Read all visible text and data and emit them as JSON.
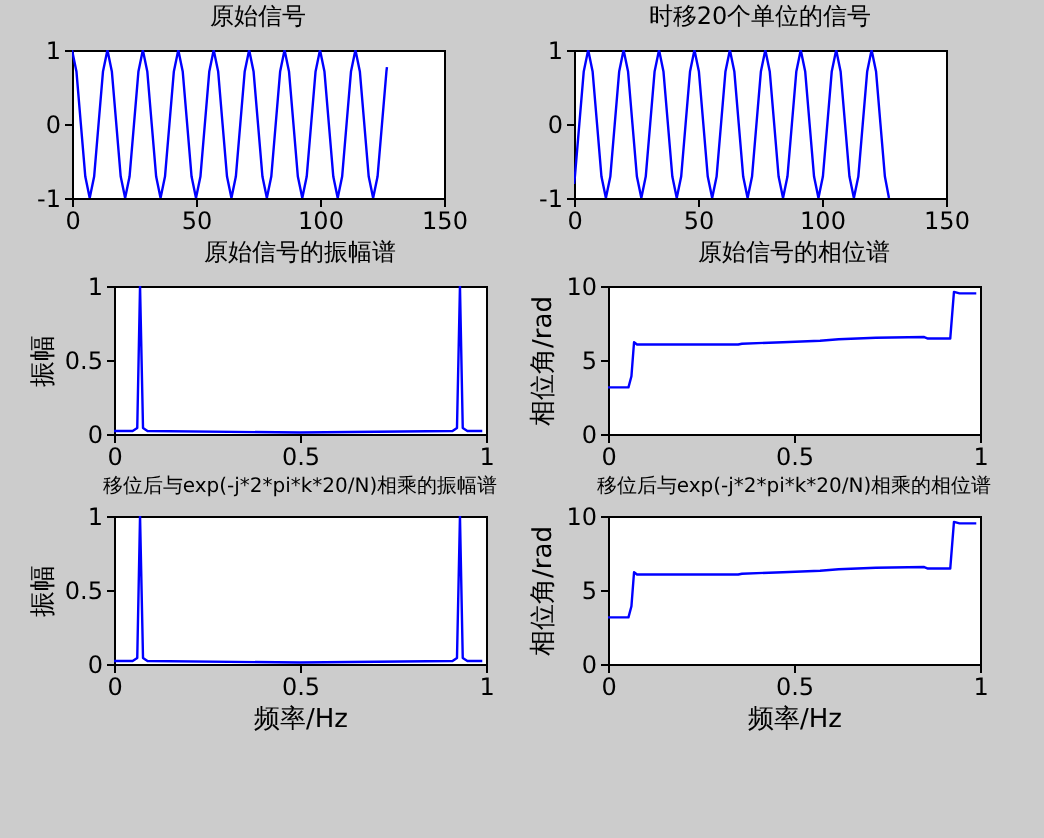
{
  "chart_data": [
    {
      "type": "line",
      "title": "原始信号",
      "x": [
        0,
        1.79,
        3.57,
        5.36,
        7.14,
        8.93,
        10.71,
        12.5,
        14.29,
        16.07,
        17.86,
        19.64,
        21.43,
        23.21,
        25,
        26.79,
        28.57,
        30.36,
        32.14,
        33.93,
        35.71,
        37.5,
        39.29,
        41.07,
        42.86,
        44.64,
        46.43,
        48.21,
        50,
        51.79,
        53.57,
        55.36,
        57.14,
        58.93,
        60.71,
        62.5,
        64.29,
        66.07,
        67.86,
        69.64,
        71.43,
        73.21,
        75,
        76.79,
        78.57,
        80.36,
        82.14,
        83.93,
        85.71,
        87.5,
        89.29,
        91.07,
        92.86,
        94.64,
        96.43,
        98.21,
        100,
        101.79,
        103.57,
        105.36,
        107.14,
        108.93,
        110.71,
        112.5,
        114.29,
        116.07,
        117.86,
        119.64,
        121.43,
        123.21,
        125,
        126.79,
        127
      ],
      "series": [
        {
          "color": "#0000ff",
          "values": [
            1,
            0.71,
            0,
            -0.71,
            -1,
            -0.71,
            0,
            0.71,
            1,
            0.71,
            0,
            -0.71,
            -1,
            -0.71,
            0,
            0.71,
            1,
            0.71,
            0,
            -0.71,
            -1,
            -0.71,
            0,
            0.71,
            1,
            0.71,
            0,
            -0.71,
            -1,
            -0.71,
            0,
            0.71,
            1,
            0.71,
            0,
            -0.71,
            -1,
            -0.71,
            0,
            0.71,
            1,
            0.71,
            0,
            -0.71,
            -1,
            -0.71,
            0,
            0.71,
            1,
            0.71,
            0,
            -0.71,
            -1,
            -0.71,
            0,
            0.71,
            1,
            0.71,
            0,
            -0.71,
            -1,
            -0.71,
            0,
            0.71,
            1,
            0.71,
            0,
            -0.71,
            -1,
            -0.71,
            0,
            0.71,
            0.77
          ]
        }
      ],
      "xlim": [
        0,
        150
      ],
      "ylim": [
        -1,
        1
      ],
      "xticks": [
        0,
        50,
        100,
        150
      ],
      "yticks": [
        -1,
        0,
        1
      ]
    },
    {
      "type": "line",
      "title": "时移20个单位的信号",
      "x": [
        0,
        0.36,
        2.15,
        3.93,
        5.72,
        7.5,
        9.29,
        11.07,
        12.86,
        14.65,
        16.43,
        18.22,
        20,
        21.79,
        23.57,
        25.36,
        27.15,
        28.93,
        30.72,
        32.5,
        34.29,
        36.07,
        37.86,
        39.65,
        41.43,
        43.22,
        45,
        46.79,
        48.57,
        50.36,
        52.15,
        53.93,
        55.72,
        57.5,
        59.29,
        61.07,
        62.86,
        64.65,
        66.43,
        68.22,
        70,
        71.79,
        73.57,
        75.36,
        77.15,
        78.93,
        80.72,
        82.5,
        84.29,
        86.07,
        87.86,
        89.65,
        91.43,
        93.22,
        95,
        96.79,
        98.57,
        100.36,
        102.15,
        103.93,
        105.72,
        107.5,
        109.29,
        111.07,
        112.86,
        114.65,
        116.43,
        118.22,
        120,
        121.79,
        123.57,
        125.36,
        127
      ],
      "series": [
        {
          "color": "#0000ff",
          "values": [
            -0.81,
            -0.71,
            0,
            0.71,
            1,
            0.71,
            0,
            -0.71,
            -1,
            -0.71,
            0,
            0.71,
            1,
            0.71,
            0,
            -0.71,
            -1,
            -0.71,
            0,
            0.71,
            1,
            0.71,
            0,
            -0.71,
            -1,
            -0.71,
            0,
            0.71,
            1,
            0.71,
            0,
            -0.71,
            -1,
            -0.71,
            0,
            0.71,
            1,
            0.71,
            0,
            -0.71,
            -1,
            -0.71,
            0,
            0.71,
            1,
            0.71,
            0,
            -0.71,
            -1,
            -0.71,
            0,
            0.71,
            1,
            0.71,
            0,
            -0.71,
            -1,
            -0.71,
            0,
            0.71,
            1,
            0.71,
            0,
            -0.71,
            -1,
            -0.71,
            0,
            0.71,
            1,
            0.71,
            0,
            -0.71,
            -1
          ]
        }
      ],
      "xlim": [
        0,
        150
      ],
      "ylim": [
        -1,
        1
      ],
      "xticks": [
        0,
        50,
        100,
        150
      ],
      "yticks": [
        -1,
        0,
        1
      ]
    },
    {
      "type": "line",
      "title": "原始信号的振幅谱",
      "ylabel": "振幅",
      "x": [
        0,
        0.05,
        0.0625,
        0.07,
        0.078,
        0.09,
        0.5,
        0.91,
        0.922,
        0.93,
        0.9375,
        0.95,
        0.99
      ],
      "series": [
        {
          "color": "#0000ff",
          "values": [
            0.02,
            0.02,
            0.04,
            1,
            0.04,
            0.02,
            0.01,
            0.02,
            0.04,
            1,
            0.04,
            0.02,
            0.02
          ]
        }
      ],
      "xlim": [
        0,
        1
      ],
      "ylim": [
        0,
        1
      ],
      "xticks": [
        0,
        0.5,
        1
      ],
      "yticks": [
        0,
        0.5,
        1
      ]
    },
    {
      "type": "line",
      "title": "原始信号的相位谱",
      "ylabel": "相位角/rad",
      "x": [
        0,
        0.055,
        0.063,
        0.07,
        0.078,
        0.35,
        0.36,
        0.47,
        0.57,
        0.62,
        0.72,
        0.85,
        0.86,
        0.92,
        0.93,
        0.945,
        0.99
      ],
      "series": [
        {
          "color": "#0000ff",
          "values": [
            3.15,
            3.15,
            3.9,
            6.2,
            6.05,
            6.05,
            6.1,
            6.2,
            6.3,
            6.4,
            6.5,
            6.55,
            6.45,
            6.45,
            9.6,
            9.5,
            9.5
          ]
        }
      ],
      "xlim": [
        0,
        1
      ],
      "ylim": [
        0,
        10
      ],
      "xticks": [
        0,
        0.5,
        1
      ],
      "yticks": [
        0,
        5,
        10
      ]
    },
    {
      "type": "line",
      "title": "移位后与exp(-j*2*pi*k*20/N)相乘的振幅谱",
      "xlabel": "频率/Hz",
      "ylabel": "振幅",
      "x": [
        0,
        0.05,
        0.0625,
        0.07,
        0.078,
        0.09,
        0.5,
        0.91,
        0.922,
        0.93,
        0.9375,
        0.95,
        0.99
      ],
      "series": [
        {
          "color": "#0000ff",
          "values": [
            0.02,
            0.02,
            0.04,
            1,
            0.04,
            0.02,
            0.01,
            0.02,
            0.04,
            1,
            0.04,
            0.02,
            0.02
          ]
        }
      ],
      "xlim": [
        0,
        1
      ],
      "ylim": [
        0,
        1
      ],
      "xticks": [
        0,
        0.5,
        1
      ],
      "yticks": [
        0,
        0.5,
        1
      ]
    },
    {
      "type": "line",
      "title": "移位后与exp(-j*2*pi*k*20/N)相乘的相位谱",
      "xlabel": "频率/Hz",
      "ylabel": "相位角/rad",
      "x": [
        0,
        0.055,
        0.063,
        0.07,
        0.078,
        0.35,
        0.36,
        0.47,
        0.57,
        0.62,
        0.72,
        0.85,
        0.86,
        0.92,
        0.93,
        0.945,
        0.99
      ],
      "series": [
        {
          "color": "#0000ff",
          "values": [
            3.15,
            3.15,
            3.9,
            6.2,
            6.05,
            6.05,
            6.1,
            6.2,
            6.3,
            6.4,
            6.5,
            6.55,
            6.45,
            6.45,
            9.6,
            9.5,
            9.5
          ]
        }
      ],
      "xlim": [
        0,
        1
      ],
      "ylim": [
        0,
        10
      ],
      "xticks": [
        0,
        0.5,
        1
      ],
      "yticks": [
        0,
        5,
        10
      ]
    }
  ]
}
